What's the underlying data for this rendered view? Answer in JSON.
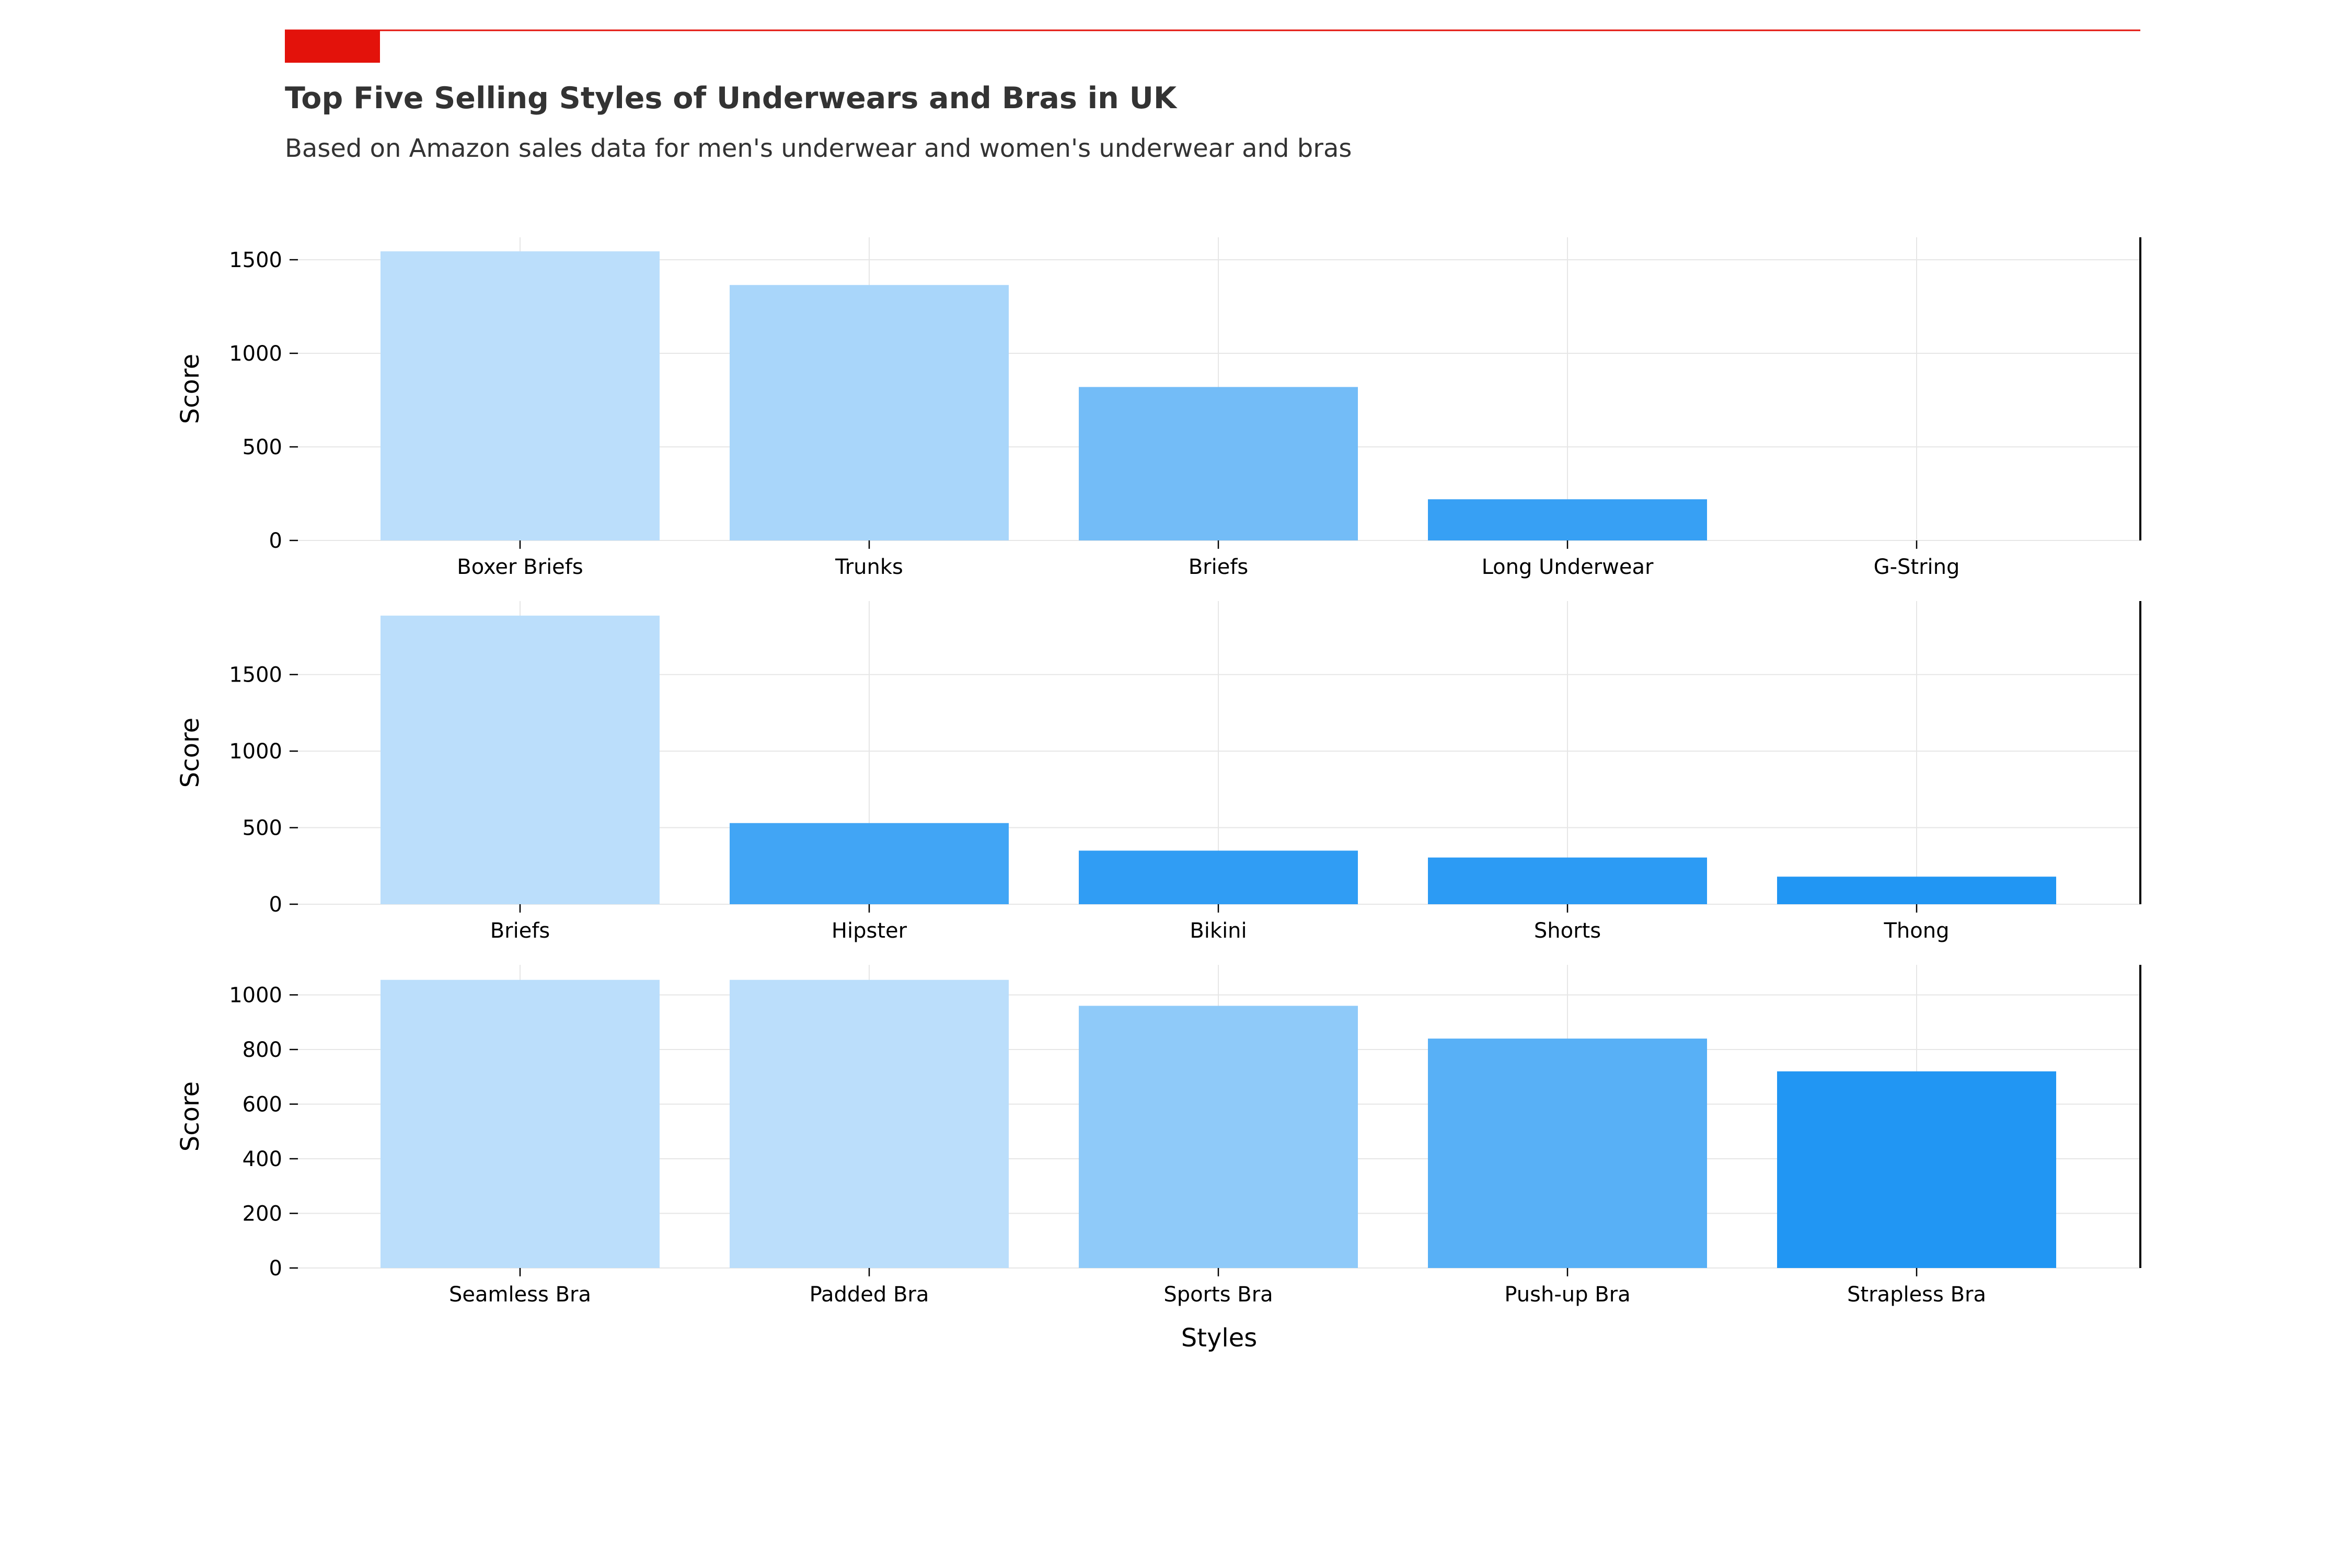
{
  "header": {
    "title": "Top Five Selling Styles of Underwears and Bras in UK",
    "subtitle": "Based on Amazon sales data for men's underwear and women's underwear and bras",
    "accent_color": "#e3120b"
  },
  "colors": {
    "grid": "#e6e6e6",
    "bar_light": "#bbdefb",
    "bar_dark": "#2196f3",
    "text": "#000000"
  },
  "chart_data": [
    {
      "type": "bar",
      "categories": [
        "Boxer Briefs",
        "Trunks",
        "Briefs",
        "Long Underwear",
        "G-String"
      ],
      "values": [
        1545,
        1365,
        820,
        220,
        0
      ],
      "ylabel": "Score",
      "xlabel": "",
      "ylim": [
        0,
        1620
      ],
      "yticks": [
        0,
        500,
        1000,
        1500
      ],
      "grid": true
    },
    {
      "type": "bar",
      "categories": [
        "Briefs",
        "Hipster",
        "Bikini",
        "Shorts",
        "Thong"
      ],
      "values": [
        1885,
        530,
        350,
        305,
        180
      ],
      "ylabel": "Score",
      "xlabel": "",
      "ylim": [
        0,
        1980
      ],
      "yticks": [
        0,
        500,
        1000,
        1500
      ],
      "grid": true
    },
    {
      "type": "bar",
      "categories": [
        "Seamless Bra",
        "Padded Bra",
        "Sports Bra",
        "Push-up Bra",
        "Strapless Bra"
      ],
      "values": [
        1055,
        1055,
        960,
        840,
        720
      ],
      "ylabel": "Score",
      "xlabel": "Styles",
      "ylim": [
        0,
        1110
      ],
      "yticks": [
        0,
        200,
        400,
        600,
        800,
        1000
      ],
      "grid": true
    }
  ]
}
